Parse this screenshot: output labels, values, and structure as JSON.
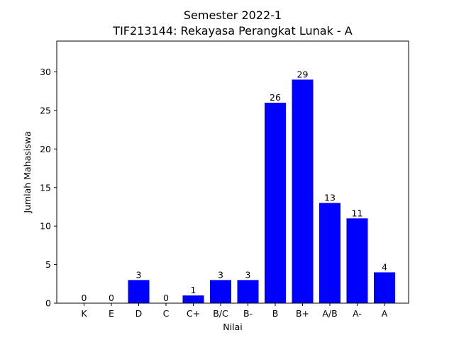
{
  "chart_data": {
    "type": "bar",
    "title": "Semester 2022-1",
    "subtitle": "TIF213144: Rekayasa Perangkat Lunak - A",
    "xlabel": "Nilai",
    "ylabel": "Jumlah Mahasiswa",
    "categories": [
      "K",
      "E",
      "D",
      "C",
      "C+",
      "B/C",
      "B-",
      "B",
      "B+",
      "A/B",
      "A-",
      "A"
    ],
    "values": [
      0,
      0,
      3,
      0,
      1,
      3,
      3,
      26,
      29,
      13,
      11,
      4
    ],
    "ylim": [
      0,
      34
    ],
    "yticks": [
      0,
      5,
      10,
      15,
      20,
      25,
      30
    ],
    "bar_color": "#0000ff",
    "grid": false
  }
}
